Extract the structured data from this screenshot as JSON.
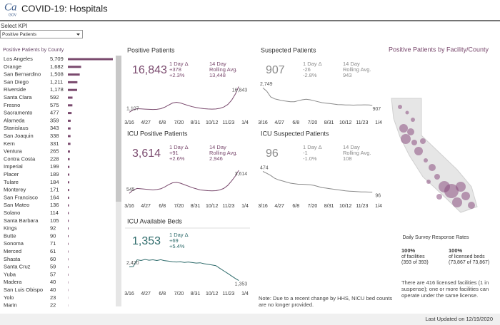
{
  "header": {
    "logo_main": "Ca",
    "logo_sub": "GOV",
    "title": "COVID-19: Hospitals",
    "updated": "Last Updated on 12/19/2020"
  },
  "select_kpi": {
    "label": "Select KPI",
    "value": "Positive Patients"
  },
  "county_list": {
    "title": "Positive Patients by County",
    "color": "#7a4a6e",
    "xlim": [
      0,
      5709
    ],
    "rows": [
      {
        "name": "Los Angeles",
        "value": 5709,
        "label": "5,709"
      },
      {
        "name": "Orange",
        "value": 1682,
        "label": "1,682"
      },
      {
        "name": "San Bernardino",
        "value": 1508,
        "label": "1,508"
      },
      {
        "name": "San Diego",
        "value": 1211,
        "label": "1,211"
      },
      {
        "name": "Riverside",
        "value": 1178,
        "label": "1,178"
      },
      {
        "name": "Santa Clara",
        "value": 592
      },
      {
        "name": "Fresno",
        "value": 575
      },
      {
        "name": "Sacramento",
        "value": 477
      },
      {
        "name": "Alameda",
        "value": 359
      },
      {
        "name": "Stanislaus",
        "value": 343
      },
      {
        "name": "San Joaquin",
        "value": 338
      },
      {
        "name": "Kern",
        "value": 331
      },
      {
        "name": "Ventura",
        "value": 265
      },
      {
        "name": "Contra Costa",
        "value": 228
      },
      {
        "name": "Imperial",
        "value": 199
      },
      {
        "name": "Placer",
        "value": 189
      },
      {
        "name": "Tulare",
        "value": 184
      },
      {
        "name": "Monterey",
        "value": 171
      },
      {
        "name": "San Francisco",
        "value": 164
      },
      {
        "name": "San Mateo",
        "value": 136
      },
      {
        "name": "Solano",
        "value": 114
      },
      {
        "name": "Santa Barbara",
        "value": 105
      },
      {
        "name": "Kings",
        "value": 92
      },
      {
        "name": "Butte",
        "value": 90
      },
      {
        "name": "Sonoma",
        "value": 71
      },
      {
        "name": "Merced",
        "value": 61
      },
      {
        "name": "Shasta",
        "value": 60
      },
      {
        "name": "Santa Cruz",
        "value": 59
      },
      {
        "name": "Yuba",
        "value": 57
      },
      {
        "name": "Madera",
        "value": 40
      },
      {
        "name": "San Luis Obispo",
        "value": 40
      },
      {
        "name": "Yolo",
        "value": 23
      },
      {
        "name": "Marin",
        "value": 22
      }
    ]
  },
  "timeline": {
    "xlim": [
      0,
      294
    ],
    "xticks": [
      {
        "value": 0,
        "label": "3/16"
      },
      {
        "value": 42,
        "label": "4/27"
      },
      {
        "value": 84,
        "label": "6/8"
      },
      {
        "value": 126,
        "label": "7/20"
      },
      {
        "value": 168,
        "label": "8/31"
      },
      {
        "value": 210,
        "label": "10/12"
      },
      {
        "value": 252,
        "label": "11/23"
      },
      {
        "value": 294,
        "label": "1/4"
      }
    ],
    "x": [
      0,
      10,
      20,
      30,
      40,
      50,
      60,
      70,
      80,
      90,
      100,
      110,
      120,
      130,
      140,
      150,
      160,
      170,
      180,
      190,
      200,
      210,
      220,
      230,
      240,
      250,
      260,
      270,
      278
    ]
  },
  "charts": [
    {
      "type": "line",
      "title": "Positive Patients",
      "headline": "16,843",
      "day_label": "1 Day Δ",
      "day_change": "+378",
      "day_pct": "+2.3%",
      "avg_label_lines": [
        "14 Day",
        "Rolling Avg."
      ],
      "avg": "13,448",
      "color": "#7a4a6e",
      "ylim": [
        0,
        17500
      ],
      "values": [
        1107,
        2600,
        3300,
        3200,
        3000,
        2900,
        2800,
        2900,
        3300,
        4200,
        5500,
        6800,
        7200,
        6800,
        6000,
        5200,
        4500,
        4000,
        3600,
        3300,
        3100,
        3000,
        3100,
        3500,
        4300,
        5800,
        8500,
        12500,
        16843
      ],
      "value_labels": [
        "1,107",
        null,
        null,
        null,
        null,
        null,
        null,
        null,
        null,
        null,
        null,
        null,
        null,
        null,
        null,
        null,
        null,
        null,
        null,
        null,
        null,
        null,
        null,
        null,
        null,
        null,
        null,
        null,
        "16,843"
      ]
    },
    {
      "type": "line",
      "title": "Suspected Patients",
      "headline": "907",
      "day_label": "1 Day Δ",
      "day_change": "-26",
      "day_pct": "-2.8%",
      "avg_label_lines": [
        "14 Day",
        "Rolling Avg."
      ],
      "avg": "943",
      "color": "#8a8a8a",
      "ylim": [
        0,
        3000
      ],
      "values": [
        2749,
        2400,
        1800,
        1600,
        1500,
        1400,
        1350,
        1300,
        1300,
        1400,
        1500,
        1550,
        1500,
        1400,
        1300,
        1200,
        1150,
        1100,
        1050,
        1000,
        980,
        960,
        950,
        940,
        950,
        960,
        970,
        950,
        907
      ],
      "value_labels": [
        "2,749",
        null,
        null,
        null,
        null,
        null,
        null,
        null,
        null,
        null,
        null,
        null,
        null,
        null,
        null,
        null,
        null,
        null,
        null,
        null,
        null,
        null,
        null,
        null,
        null,
        null,
        null,
        null,
        "907"
      ]
    },
    {
      "type": "line",
      "title": "ICU Positive Patients",
      "headline": "3,614",
      "day_label": "1 Day Δ",
      "day_change": "+91",
      "day_pct": "+2.6%",
      "avg_label_lines": [
        "14 Day",
        "Rolling Avg."
      ],
      "avg": "2,946",
      "color": "#7a4a6e",
      "ylim": [
        0,
        3800
      ],
      "values": [
        545,
        1000,
        1200,
        1150,
        1100,
        1050,
        1000,
        1050,
        1150,
        1400,
        1700,
        1950,
        2000,
        1900,
        1700,
        1500,
        1300,
        1150,
        1000,
        950,
        900,
        880,
        900,
        1000,
        1200,
        1600,
        2200,
        2900,
        3614
      ],
      "value_labels": [
        "545",
        null,
        null,
        null,
        null,
        null,
        null,
        null,
        null,
        null,
        null,
        null,
        null,
        null,
        null,
        null,
        null,
        null,
        null,
        null,
        null,
        null,
        null,
        null,
        null,
        null,
        null,
        null,
        "3,614"
      ]
    },
    {
      "type": "line",
      "title": "ICU Suspected Patients",
      "headline": "96",
      "day_label": "1 Day Δ",
      "day_change": "-1",
      "day_pct": "-1.0%",
      "avg_label_lines": [
        "14 Day",
        "Rolling Avg."
      ],
      "avg": "108",
      "color": "#8a8a8a",
      "ylim": [
        0,
        520
      ],
      "values": [
        474,
        440,
        400,
        350,
        320,
        300,
        280,
        260,
        250,
        240,
        240,
        235,
        230,
        220,
        200,
        180,
        170,
        160,
        150,
        140,
        130,
        120,
        115,
        110,
        105,
        100,
        100,
        98,
        96
      ],
      "value_labels": [
        "474",
        null,
        null,
        null,
        null,
        null,
        null,
        null,
        null,
        null,
        null,
        null,
        null,
        null,
        null,
        null,
        null,
        null,
        null,
        null,
        null,
        null,
        null,
        null,
        null,
        null,
        null,
        null,
        "96"
      ]
    },
    {
      "type": "line",
      "title": "ICU Available Beds",
      "headline": "1,353",
      "day_label": "1 Day Δ",
      "day_change": "+69",
      "day_pct": "+5.4%",
      "color": "#2e6b6b",
      "ylim": [
        1000,
        3200
      ],
      "values": [
        2420,
        2430,
        2950,
        2900,
        2980,
        2920,
        2950,
        2900,
        2960,
        2880,
        2850,
        2800,
        2780,
        2800,
        2750,
        2780,
        2740,
        2700,
        2720,
        2650,
        2600,
        2550,
        2500,
        2300,
        2100,
        1900,
        1700,
        1500,
        1353
      ],
      "value_labels": [
        "2,420",
        null,
        null,
        null,
        null,
        null,
        null,
        null,
        null,
        null,
        null,
        null,
        null,
        null,
        null,
        null,
        null,
        null,
        null,
        null,
        null,
        null,
        null,
        null,
        null,
        null,
        null,
        null,
        "1,353"
      ]
    }
  ],
  "hhs_note": "Note: Due to a recent change by HHS, NICU bed counts are no longer provided.",
  "map": {
    "title": "Positive Patients by Facility/County"
  },
  "survey": {
    "title": "Daily Survey Response Rates",
    "facilities": {
      "pct": "100%",
      "label": "of facilities",
      "detail": "(393 of 393)"
    },
    "beds": {
      "pct": "100%",
      "label": "of licensed beds",
      "detail": "(73,867 of 73,867)"
    },
    "note": "There are 416 licensed facilities (1 in suspense); one or more facilities can operate under the same license."
  }
}
